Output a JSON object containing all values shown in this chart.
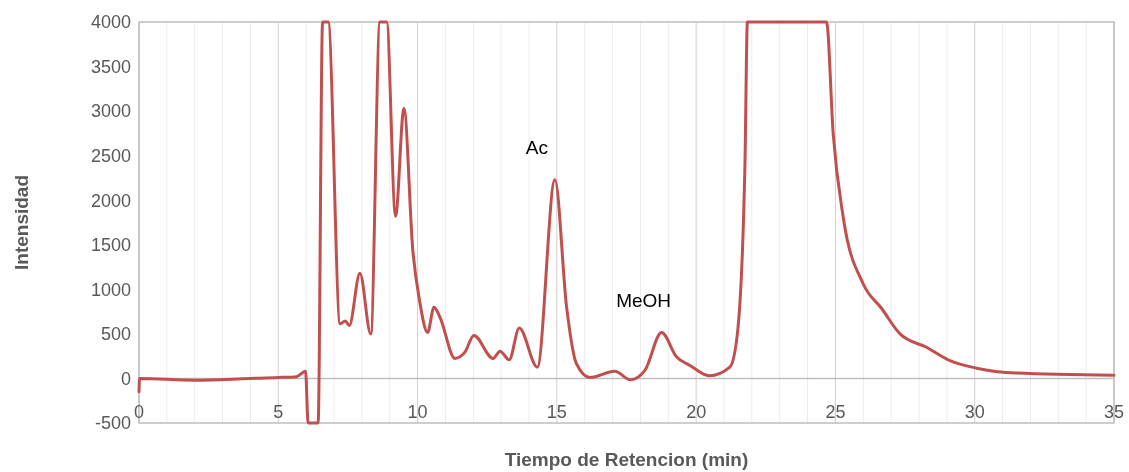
{
  "chart_data": {
    "type": "line",
    "xlabel": "Tiempo de Retencion (min)",
    "ylabel": "Intensidad",
    "xlim": [
      0,
      35
    ],
    "ylim": [
      -500,
      4000
    ],
    "xticks": [
      0,
      {
        "value": 1,
        "label": null
      },
      {
        "value": 2,
        "label": null
      },
      {
        "value": 3,
        "label": null
      },
      {
        "value": 4,
        "label": null
      },
      5,
      {
        "value": 6,
        "label": null
      },
      {
        "value": 7,
        "label": null
      },
      {
        "value": 8,
        "label": null
      },
      {
        "value": 9,
        "label": null
      },
      10,
      {
        "value": 11,
        "label": null
      },
      {
        "value": 12,
        "label": null
      },
      {
        "value": 13,
        "label": null
      },
      {
        "value": 14,
        "label": null
      },
      15,
      {
        "value": 16,
        "label": null
      },
      {
        "value": 17,
        "label": null
      },
      {
        "value": 18,
        "label": null
      },
      {
        "value": 19,
        "label": null
      },
      20,
      {
        "value": 21,
        "label": null
      },
      {
        "value": 22,
        "label": null
      },
      {
        "value": 23,
        "label": null
      },
      {
        "value": 24,
        "label": null
      },
      25,
      {
        "value": 26,
        "label": null
      },
      {
        "value": 27,
        "label": null
      },
      {
        "value": 28,
        "label": null
      },
      {
        "value": 29,
        "label": null
      },
      30,
      {
        "value": 31,
        "label": null
      },
      {
        "value": 32,
        "label": null
      },
      {
        "value": 33,
        "label": null
      },
      {
        "value": 34,
        "label": null
      },
      35
    ],
    "yticks": [
      -500,
      0,
      500,
      1000,
      1500,
      2000,
      2500,
      3000,
      3500,
      4000
    ],
    "grid": "x",
    "marker": "none",
    "line_style": "solid",
    "annotations": [
      {
        "text": "Ac",
        "x": 14.93,
        "y": 2230
      },
      {
        "text": "MeOH",
        "x": 18.76,
        "y": 515
      }
    ],
    "series": [
      {
        "color": "#c0504d",
        "x": [
          0,
          0.02,
          2,
          4,
          5,
          5.66,
          5.98,
          6.07,
          6.43,
          6.59,
          6.79,
          7.22,
          7.4,
          7.55,
          7.93,
          8.32,
          8.65,
          8.89,
          9.21,
          9.51,
          9.83,
          10.07,
          10.36,
          10.59,
          10.8,
          11.34,
          11.7,
          12.02,
          12.71,
          12.96,
          13.29,
          13.65,
          14.3,
          14.93,
          15.35,
          15.7,
          16.19,
          17.08,
          17.65,
          18.16,
          18.76,
          19.3,
          19.78,
          20.47,
          21.21,
          21.48,
          21.75,
          21.84,
          24.68,
          24.92,
          25.28,
          26.0,
          26.66,
          27.32,
          28.27,
          29.11,
          30.07,
          31.5,
          35
        ],
        "values": [
          -150,
          0,
          -20,
          0,
          10,
          20,
          80,
          -500,
          -500,
          4000,
          4000,
          615,
          645,
          595,
          1180,
          500,
          4000,
          4000,
          1820,
          3030,
          1435,
          875,
          515,
          800,
          690,
          225,
          295,
          483,
          225,
          305,
          210,
          565,
          127,
          2230,
          800,
          168,
          10,
          80,
          -15,
          90,
          515,
          240,
          146,
          30,
          127,
          500,
          2370,
          4000,
          4000,
          2745,
          1810,
          1060,
          785,
          500,
          350,
          200,
          115,
          60,
          35
        ]
      }
    ]
  }
}
